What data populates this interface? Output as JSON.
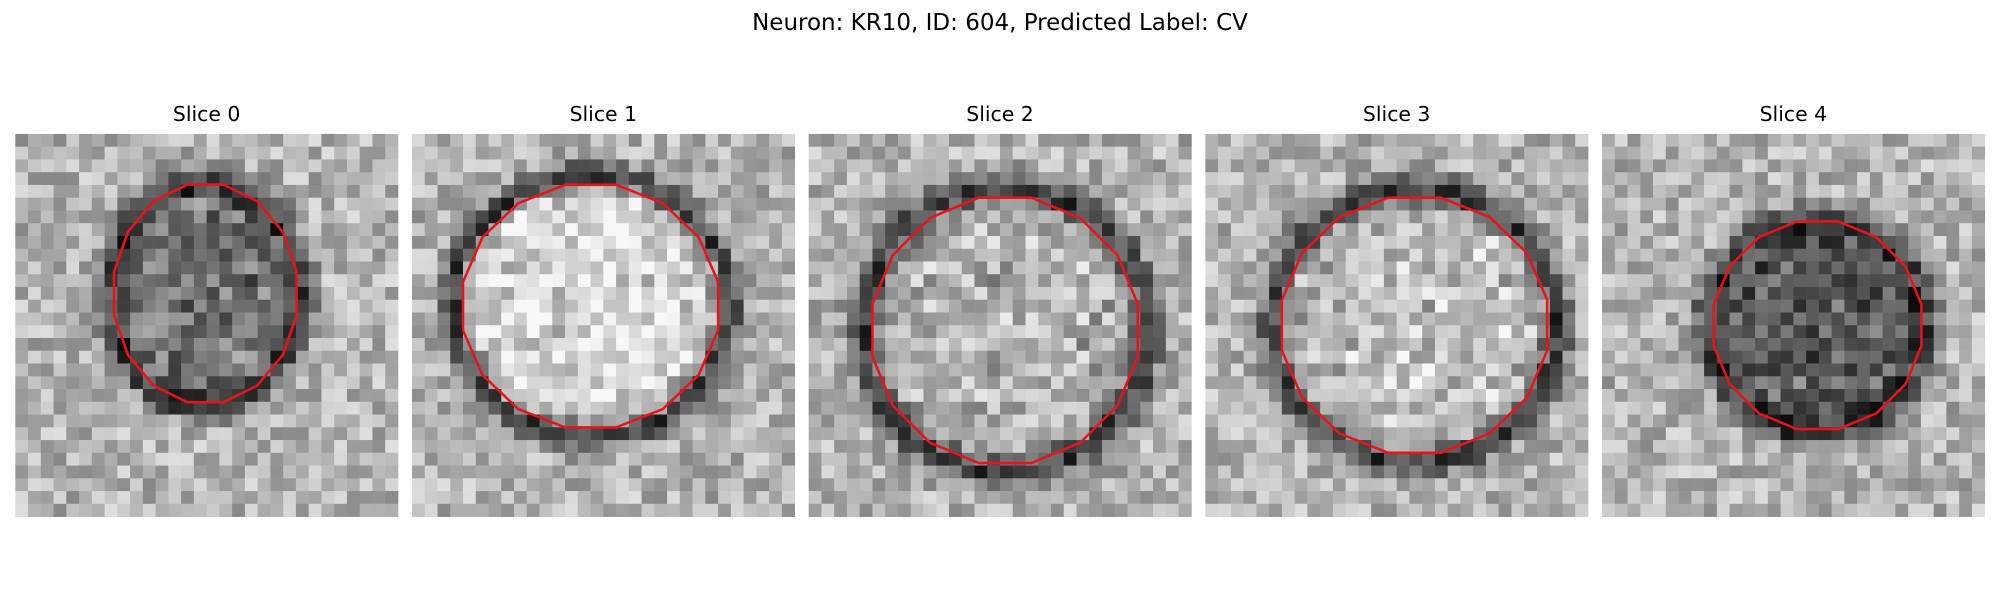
{
  "figure": {
    "title": "Neuron: KR10, ID: 604, Predicted Label: CV",
    "panels": [
      {
        "title": "Slice 0"
      },
      {
        "title": "Slice 1"
      },
      {
        "title": "Slice 2"
      },
      {
        "title": "Slice 3"
      },
      {
        "title": "Slice 4"
      }
    ]
  }
}
